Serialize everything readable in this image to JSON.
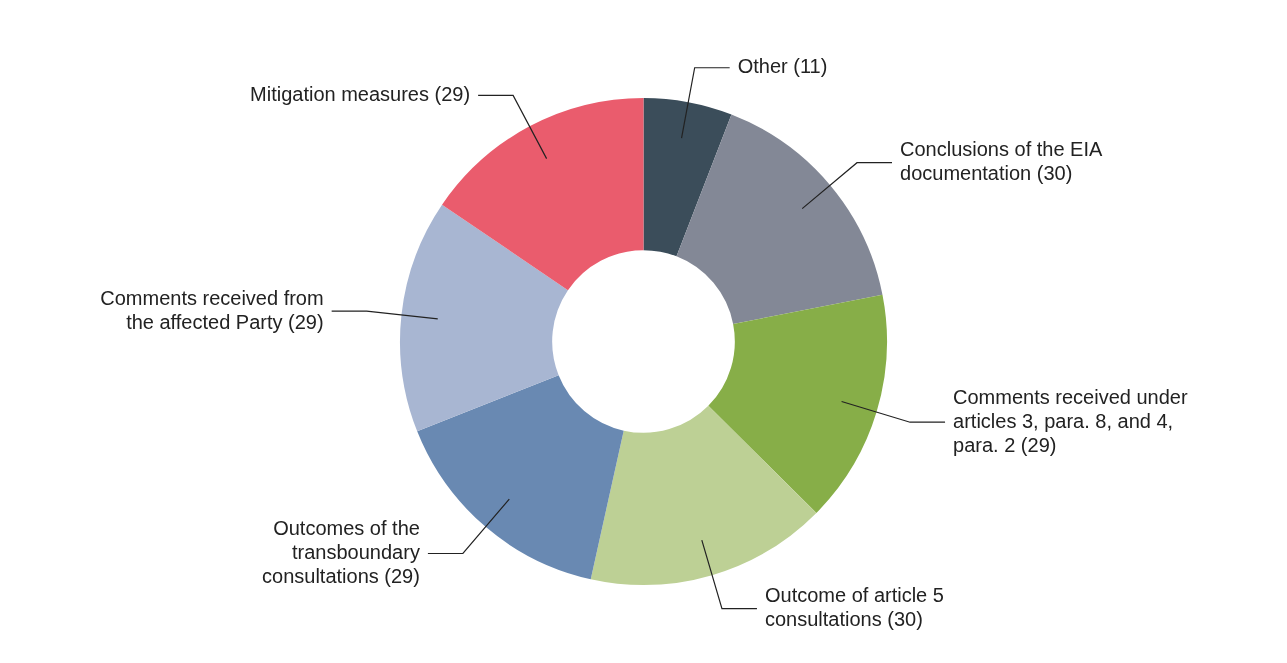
{
  "chart_data": {
    "type": "donut",
    "categories": [
      "Other",
      "Conclusions of the EIA documentation",
      "Comments received under articles 3, para. 8, and 4, para. 2",
      "Outcome of article 5 consultations",
      "Outcomes of the transboundary consultations",
      "Comments received from the affected Party",
      "Mitigation measures"
    ],
    "values": [
      11,
      30,
      29,
      30,
      29,
      29,
      29
    ],
    "value_labels": [
      "(11)",
      "(30)",
      "(29)",
      "(30)",
      "(29)",
      "(29)",
      "(29)"
    ],
    "colors": [
      "#3b4d5a",
      "#838896",
      "#87ae48",
      "#bdd095",
      "#6989b2",
      "#a8b6d2",
      "#ea5c6d"
    ],
    "legend": false
  }
}
